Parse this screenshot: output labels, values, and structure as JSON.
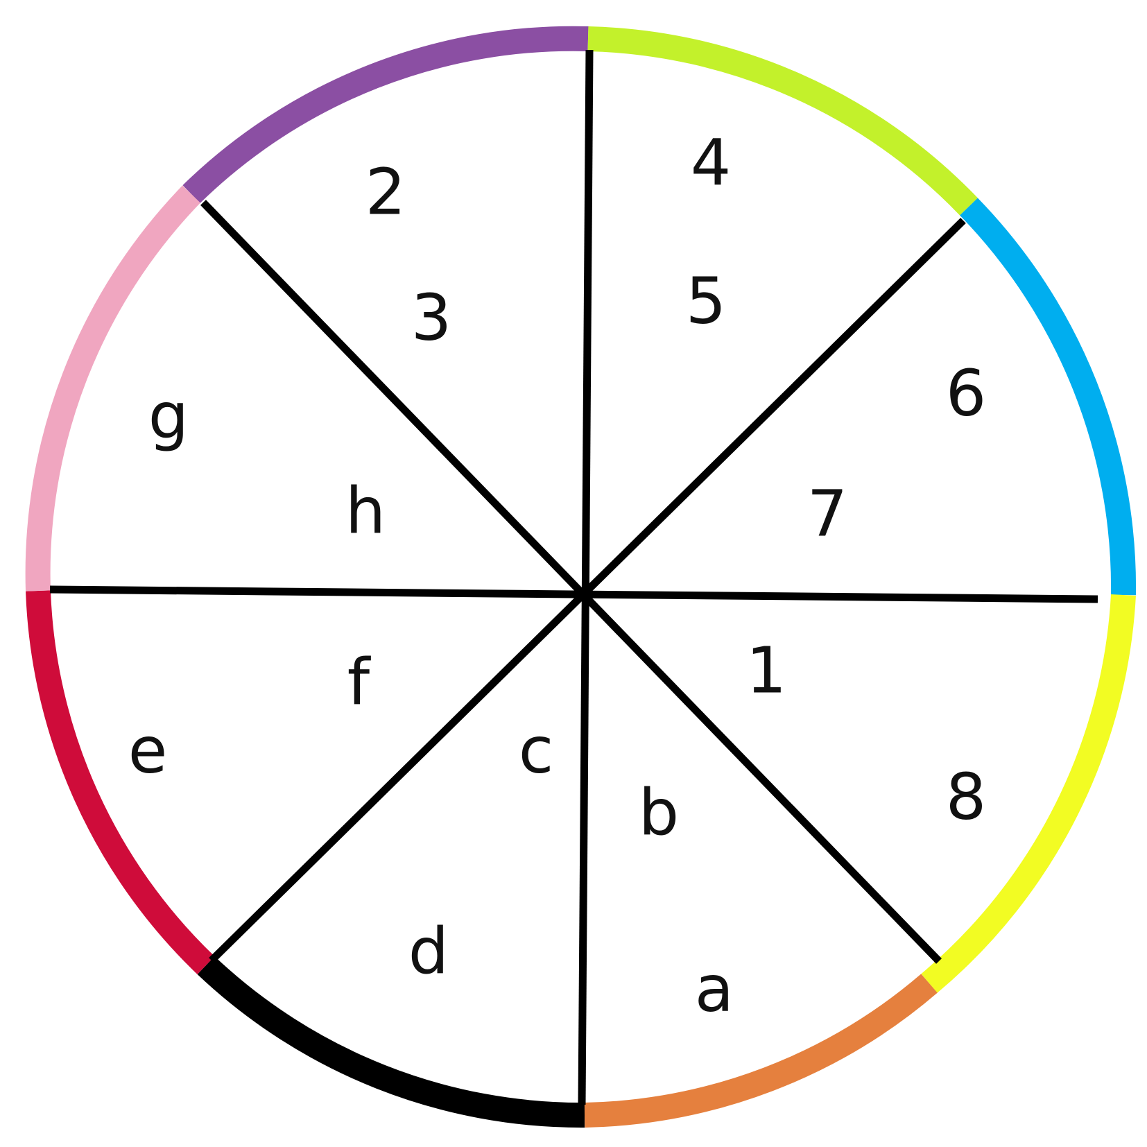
{
  "arcs": [
    {
      "name": "arc-purple",
      "color": "#8B4FA3"
    },
    {
      "name": "arc-lime",
      "color": "#C3F12B"
    },
    {
      "name": "arc-blue",
      "color": "#00AEEF"
    },
    {
      "name": "arc-yellow",
      "color": "#F2FC23"
    },
    {
      "name": "arc-orange",
      "color": "#E5803E"
    },
    {
      "name": "arc-black",
      "color": "#000000"
    },
    {
      "name": "arc-crimson",
      "color": "#CF0C3A"
    },
    {
      "name": "arc-pink",
      "color": "#F0A6C0"
    }
  ],
  "spoke_color": "#000000",
  "labels": {
    "n2": "2",
    "n3": "3",
    "n4": "4",
    "n5": "5",
    "n6": "6",
    "n7": "7",
    "n1": "1",
    "n8": "8",
    "a": "a",
    "b": "b",
    "c": "c",
    "d": "d",
    "e": "e",
    "f": "f",
    "g": "g",
    "h": "h"
  }
}
